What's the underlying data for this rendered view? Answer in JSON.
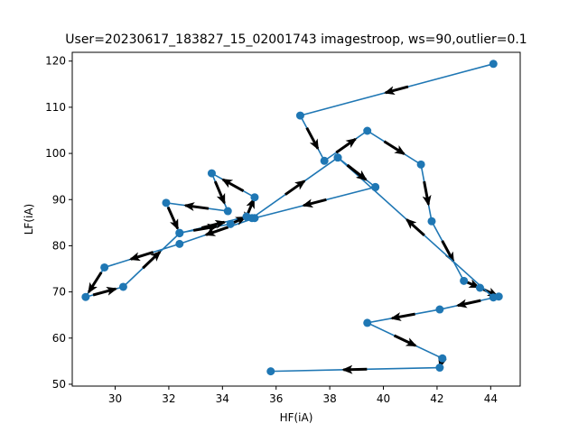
{
  "chart_data": {
    "type": "line",
    "title": "User=20230617_183827_15_02001743 imagestroop, ws=90,outlier=0.1",
    "xlabel": "HF(iA)",
    "ylabel": "LF(iA)",
    "xlim": [
      28.4,
      45.1
    ],
    "ylim": [
      49.6,
      121.9
    ],
    "xticks": [
      "30",
      "32",
      "34",
      "36",
      "38",
      "40",
      "42",
      "44"
    ],
    "yticks": [
      "50",
      "60",
      "70",
      "80",
      "90",
      "100",
      "110",
      "120"
    ],
    "grid": false,
    "series_color": "#1f77b4",
    "arrow_color": "#000000",
    "series": [
      {
        "x": [
          44.1,
          36.9,
          37.8,
          39.4,
          41.4,
          41.8,
          43.0,
          43.6,
          44.3,
          42.1,
          39.4,
          42.2,
          42.1,
          35.8
        ],
        "y": [
          119.4,
          108.2,
          98.4,
          104.9,
          97.6,
          85.3,
          72.4,
          70.9,
          69.0,
          66.2,
          63.3,
          55.6,
          53.6,
          52.8
        ]
      },
      {
        "x": [
          44.1,
          38.3,
          39.7,
          35.2,
          32.4,
          29.6,
          28.9,
          30.3,
          32.4,
          34.9,
          35.2,
          33.6,
          34.2,
          31.9,
          32.4,
          34.3,
          34.9,
          35.1,
          38.3,
          39.7
        ],
        "y": [
          68.8,
          99.1,
          92.7,
          86.0,
          80.4,
          75.3,
          68.9,
          71.1,
          82.7,
          86.3,
          90.5,
          95.7,
          87.5,
          89.3,
          82.8,
          84.7,
          86.3,
          86.0,
          99.1,
          92.7
        ]
      }
    ]
  }
}
